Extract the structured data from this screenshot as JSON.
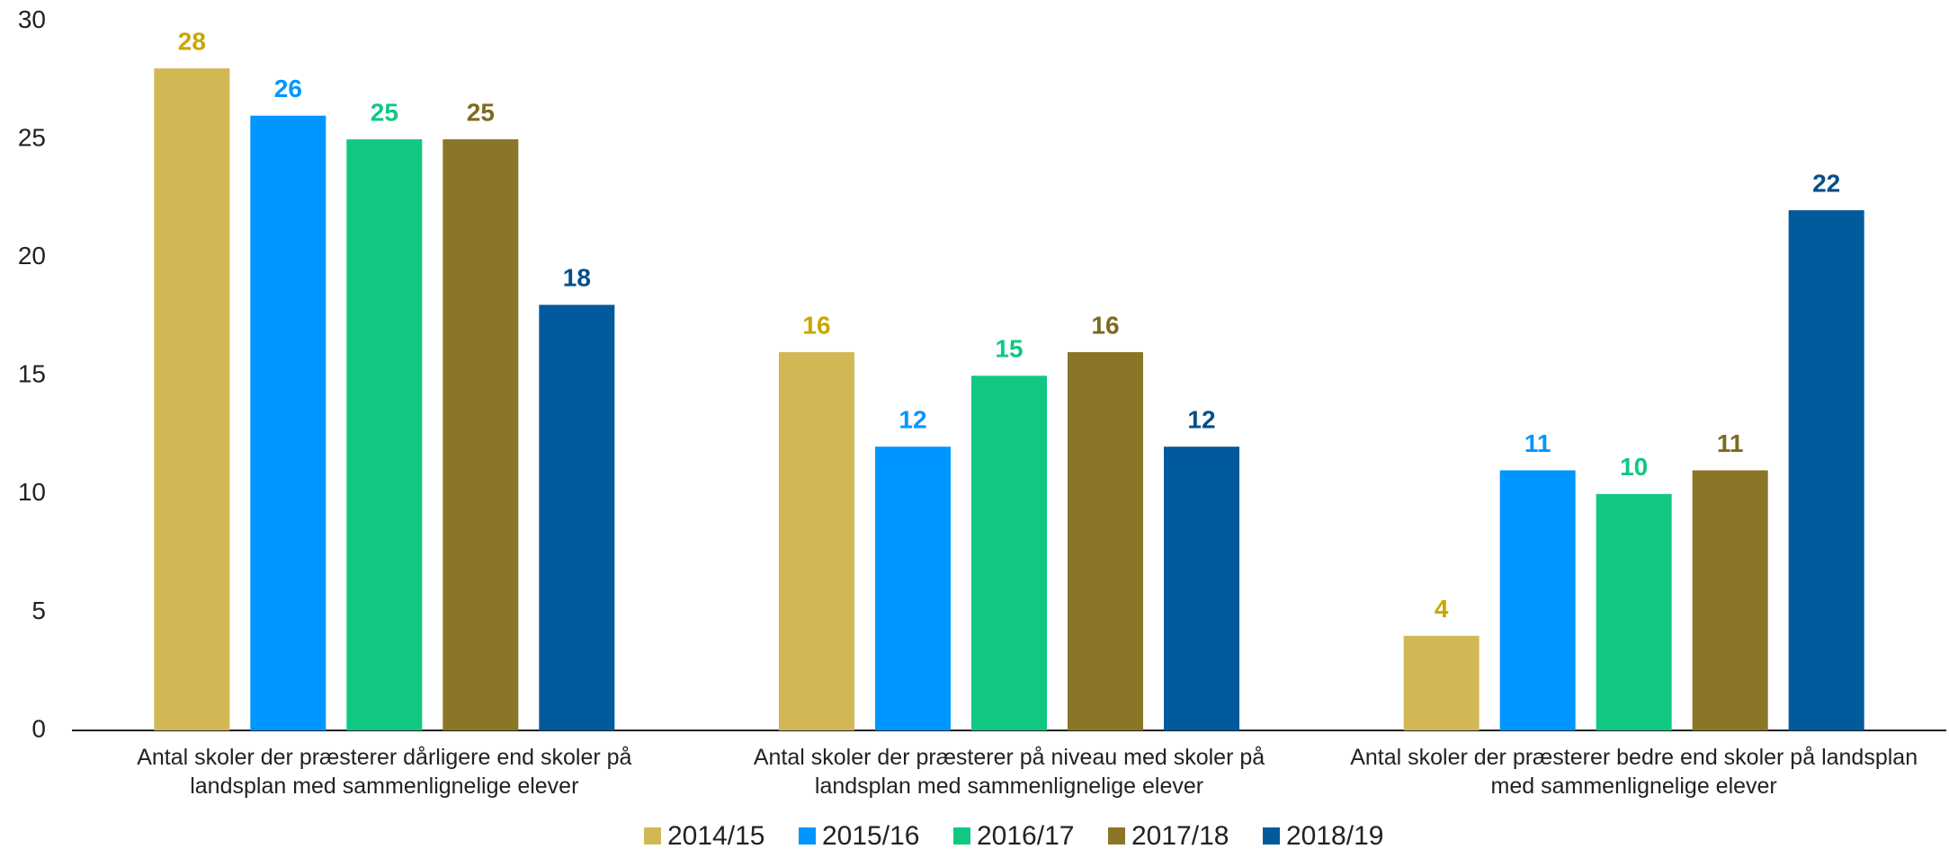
{
  "chart_data": {
    "type": "bar",
    "categories": [
      "Antal skoler der præsterer dårligere end skoler på landsplan med sammenlignelige elever",
      "Antal skoler der præsterer på niveau med skoler på landsplan med sammenlignelige elever",
      "Antal skoler der præsterer bedre end skoler på landsplan med sammenlignelige elever"
    ],
    "series": [
      {
        "name": "2014/15",
        "color": "#d1b854",
        "label_color": "#c9a600",
        "values": [
          28,
          16,
          4
        ]
      },
      {
        "name": "2015/16",
        "color": "#0096ff",
        "label_color": "#0096ff",
        "values": [
          26,
          12,
          11
        ]
      },
      {
        "name": "2016/17",
        "color": "#10c882",
        "label_color": "#10c882",
        "values": [
          25,
          15,
          10
        ]
      },
      {
        "name": "2017/18",
        "color": "#8b7526",
        "label_color": "#7d6a1e",
        "values": [
          25,
          16,
          11
        ]
      },
      {
        "name": "2018/19",
        "color": "#005a9c",
        "label_color": "#004f8a",
        "values": [
          18,
          12,
          22
        ]
      }
    ],
    "ylim": [
      0,
      30
    ],
    "yticks": [
      0,
      5,
      10,
      15,
      20,
      25,
      30
    ],
    "legend": "bottom"
  }
}
